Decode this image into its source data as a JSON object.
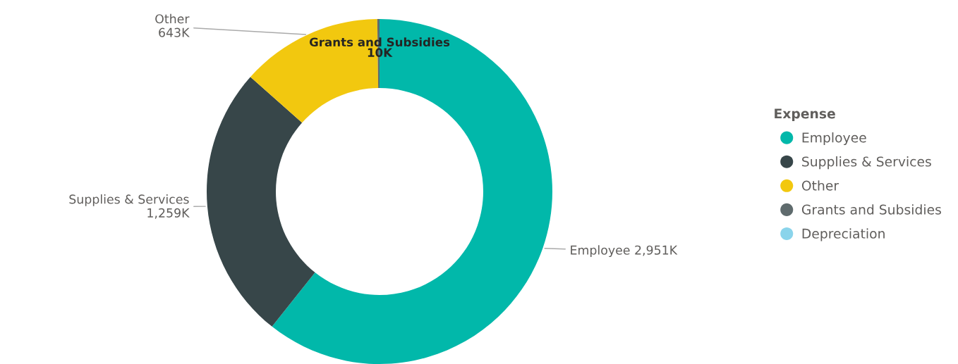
{
  "chart_data": {
    "type": "donut",
    "categories": [
      "Employee",
      "Supplies & Services",
      "Other",
      "Grants and Subsidies",
      "Depreciation"
    ],
    "values": [
      2951,
      1259,
      643,
      10,
      0
    ],
    "value_labels": [
      "2,951K",
      "1,259K",
      "643K",
      "10K",
      null
    ],
    "colors": [
      "#01b8aa",
      "#374649",
      "#f2c80f",
      "#5f6b6d",
      "#8ad4eb"
    ],
    "legend_title": "Expense",
    "legend": "right"
  }
}
